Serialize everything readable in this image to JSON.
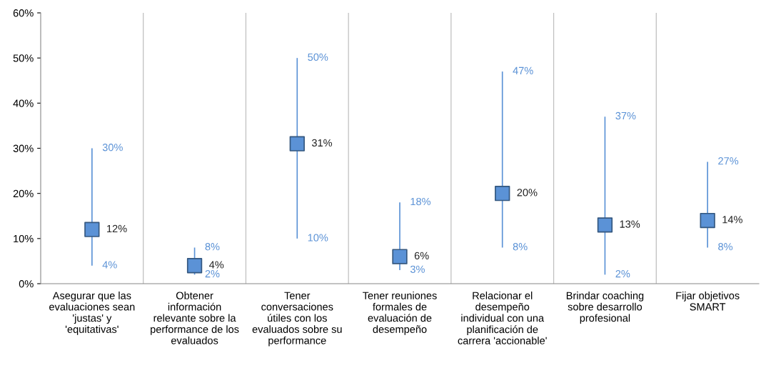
{
  "chart_data": {
    "type": "scatter",
    "categories": [
      "Asegurar que las\nevaluaciones sean\n'justas' y\n'equitativas'",
      "Obtener\ninformación\nrelevante sobre la\nperformance de los\nevaluados",
      "Tener\nconversaciones\nútiles con los\nevaluados sobre su\nperformance",
      "Tener reuniones\nformales de\nevaluación de\ndesempeño",
      "Relacionar el\ndesempeño\nindividual con una\nplanificación de\ncarrera 'accionable'",
      "Brindar coaching\nsobre desarrollo\nprofesional",
      "Fijar objetivos\nSMART"
    ],
    "values": [
      12,
      4,
      31,
      6,
      20,
      13,
      14
    ],
    "value_labels": [
      "12%",
      "4%",
      "31%",
      "6%",
      "20%",
      "13%",
      "14%"
    ],
    "errors": [
      [
        4,
        30
      ],
      [
        2,
        8
      ],
      [
        10,
        50
      ],
      [
        3,
        18
      ],
      [
        8,
        47
      ],
      [
        2,
        37
      ],
      [
        8,
        27
      ]
    ],
    "color": "#5b92d6",
    "marker": "square",
    "annotations": [
      {
        "text": "30%",
        "x": "Asegurar que las\nevaluaciones sean\n'justas' y\n'equitativas'",
        "y": 30
      },
      {
        "text": "4%",
        "x": "Asegurar que las\nevaluaciones sean\n'justas' y\n'equitativas'",
        "y": 4
      },
      {
        "text": "8%",
        "x": "Obtener\ninformación\nrelevante sobre la\nperformance de los\nevaluados",
        "y": 8
      },
      {
        "text": "2%",
        "x": "Obtener\ninformación\nrelevante sobre la\nperformance de los\nevaluados",
        "y": 2
      },
      {
        "text": "50%",
        "x": "Tener\nconversaciones\nútiles con los\nevaluados sobre su\nperformance",
        "y": 50
      },
      {
        "text": "10%",
        "x": "Tener\nconversaciones\nútiles con los\nevaluados sobre su\nperformance",
        "y": 10
      },
      {
        "text": "18%",
        "x": "Tener reuniones\nformales de\nevaluación de\ndesempeño",
        "y": 18
      },
      {
        "text": "3%",
        "x": "Tener reuniones\nformales de\nevaluación de\ndesempeño",
        "y": 3
      },
      {
        "text": "47%",
        "x": "Relacionar el\ndesempeño\nindividual con una\nplanificación de\ncarrera 'accionable'",
        "y": 47
      },
      {
        "text": "8%",
        "x": "Relacionar el\ndesempeño\nindividual con una\nplanificación de\ncarrera 'accionable'",
        "y": 8
      },
      {
        "text": "37%",
        "x": "Brindar coaching\nsobre desarrollo\nprofesional",
        "y": 37
      },
      {
        "text": "2%",
        "x": "Brindar coaching\nsobre desarrollo\nprofesional",
        "y": 2
      },
      {
        "text": "27%",
        "x": "Fijar objetivos\nSMART",
        "y": 27
      },
      {
        "text": "8%",
        "x": "Fijar objetivos\nSMART",
        "y": 8
      }
    ],
    "ylim": [
      0,
      60
    ],
    "yticks": [
      {
        "value": 0,
        "label": "0%"
      },
      {
        "value": 10,
        "label": "10%"
      },
      {
        "value": 20,
        "label": "20%"
      },
      {
        "value": 30,
        "label": "30%"
      },
      {
        "value": 40,
        "label": "40%"
      },
      {
        "value": 50,
        "label": "50%"
      },
      {
        "value": 60,
        "label": "60%"
      }
    ],
    "grid": "x"
  }
}
